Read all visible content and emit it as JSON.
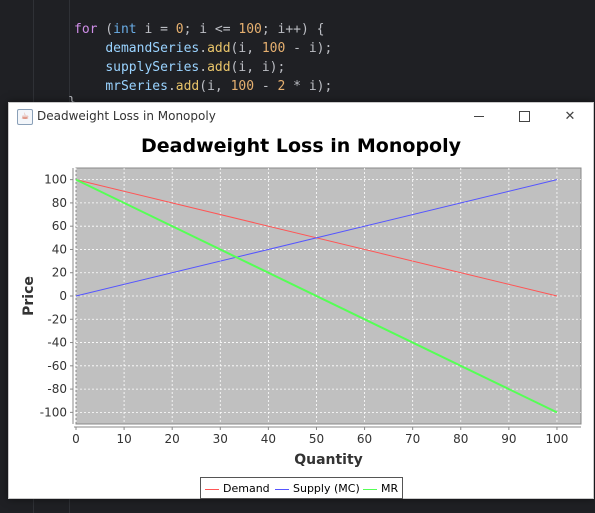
{
  "editor": {
    "line1": {
      "kw": "for",
      "paren": " (",
      "ty": "int",
      "rest": " i = ",
      "n0": "0",
      "semi": "; i <= ",
      "n100": "100",
      "end": "; i++) {"
    },
    "line2": {
      "obj": "demandSeries",
      "dot": ".",
      "fn": "add",
      "args1": "(i, ",
      "n": "100",
      "args2": " - i);"
    },
    "line3": {
      "obj": "supplySeries",
      "dot": ".",
      "fn": "add",
      "args": "(i, i);"
    },
    "line4": {
      "obj": "mrSeries",
      "dot": ".",
      "fn": "add",
      "args1": "(i, ",
      "n1": "100",
      "mid": " - ",
      "n2": "2",
      "args2": " * i);"
    },
    "tail": "}"
  },
  "window": {
    "title": "Deadweight Loss in Monopoly",
    "icons": {
      "app": "java-icon",
      "min": "minimize-icon",
      "max": "maximize-icon",
      "close": "close-icon"
    },
    "close_glyph": "✕"
  },
  "chart_data": {
    "type": "line",
    "title": "Deadweight Loss in Monopoly",
    "xlabel": "Quantity",
    "ylabel": "Price",
    "xlim": [
      0,
      105
    ],
    "ylim": [
      -110,
      110
    ],
    "xticks": [
      0,
      10,
      20,
      30,
      40,
      50,
      60,
      70,
      80,
      90,
      100
    ],
    "yticks": [
      -100,
      -80,
      -60,
      -40,
      -20,
      0,
      20,
      40,
      60,
      80,
      100
    ],
    "grid": true,
    "legend": "bottom",
    "series": [
      {
        "name": "Demand",
        "x": [
          0,
          100
        ],
        "y": [
          100,
          0
        ],
        "color": "#ff5555"
      },
      {
        "name": "Supply (MC)",
        "x": [
          0,
          100
        ],
        "y": [
          0,
          100
        ],
        "color": "#5555ff"
      },
      {
        "name": "MR",
        "x": [
          0,
          100
        ],
        "y": [
          100,
          -100
        ],
        "color": "#55ff55"
      }
    ]
  }
}
